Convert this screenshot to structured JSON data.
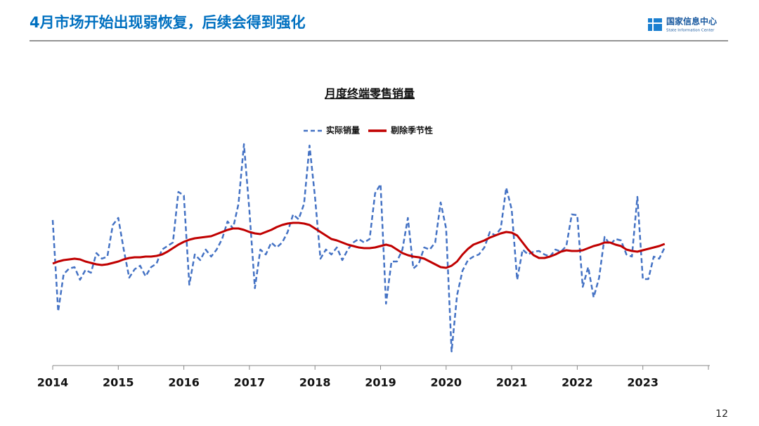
{
  "header": {
    "title": "4月市场开始出现弱恢复，后续会得到强化",
    "logo_cn": "国家信息中心",
    "logo_en": "State Information Center"
  },
  "page_number": "12",
  "chart_data": {
    "type": "line",
    "title": "月度终端零售销量",
    "categories": [
      "2014",
      null,
      null,
      null,
      null,
      null,
      null,
      null,
      null,
      null,
      null,
      null,
      "2015",
      null,
      null,
      null,
      null,
      null,
      null,
      null,
      null,
      null,
      null,
      null,
      "2016",
      null,
      null,
      null,
      null,
      null,
      null,
      null,
      null,
      null,
      null,
      null,
      "2017",
      null,
      null,
      null,
      null,
      null,
      null,
      null,
      null,
      null,
      null,
      null,
      "2018",
      null,
      null,
      null,
      null,
      null,
      null,
      null,
      null,
      null,
      null,
      null,
      "2019",
      null,
      null,
      null,
      null,
      null,
      null,
      null,
      null,
      null,
      null,
      null,
      "2020",
      null,
      null,
      null,
      null,
      null,
      null,
      null,
      null,
      null,
      null,
      null,
      "2021",
      null,
      null,
      null,
      null,
      null,
      null,
      null,
      null,
      null,
      null,
      null,
      "2022",
      null,
      null,
      null,
      null,
      null,
      null,
      null,
      null,
      null,
      null,
      null,
      "2023",
      null,
      null,
      null,
      null,
      null,
      null,
      null,
      null,
      null,
      null,
      null,
      null
    ],
    "ylim": [
      0,
      330
    ],
    "series": [
      {
        "name": "实际销量",
        "color": "#4472c4",
        "dashed": true,
        "values": [
          207,
          77,
          130,
          138,
          140,
          122,
          136,
          132,
          160,
          152,
          155,
          200,
          210,
          165,
          125,
          137,
          142,
          127,
          140,
          145,
          165,
          170,
          175,
          247,
          242,
          115,
          158,
          150,
          165,
          155,
          165,
          180,
          205,
          195,
          230,
          315,
          220,
          110,
          165,
          158,
          175,
          168,
          175,
          190,
          215,
          208,
          230,
          313,
          240,
          152,
          165,
          158,
          168,
          150,
          165,
          175,
          180,
          175,
          180,
          245,
          258,
          88,
          148,
          148,
          165,
          210,
          138,
          145,
          168,
          165,
          175,
          232,
          195,
          20,
          100,
          135,
          150,
          155,
          158,
          168,
          190,
          185,
          195,
          253,
          222,
          122,
          165,
          158,
          162,
          163,
          158,
          155,
          165,
          162,
          170,
          215,
          214,
          112,
          140,
          97,
          125,
          183,
          172,
          180,
          178,
          158,
          155,
          240,
          123,
          123,
          155,
          152,
          168,
          null,
          null,
          null,
          null,
          null,
          null,
          null,
          null
        ]
      },
      {
        "name": "剔除季节性",
        "color": "#c00000",
        "dashed": false,
        "values": [
          145,
          148,
          150,
          151,
          152,
          151,
          148,
          146,
          144,
          143,
          144,
          146,
          148,
          151,
          153,
          154,
          154,
          155,
          155,
          156,
          158,
          162,
          167,
          172,
          176,
          179,
          181,
          182,
          183,
          184,
          187,
          190,
          193,
          195,
          195,
          193,
          190,
          188,
          187,
          190,
          193,
          197,
          200,
          202,
          203,
          203,
          202,
          200,
          195,
          190,
          185,
          180,
          178,
          175,
          172,
          170,
          168,
          167,
          167,
          168,
          170,
          172,
          170,
          165,
          160,
          157,
          155,
          154,
          152,
          148,
          144,
          140,
          139,
          142,
          148,
          158,
          166,
          172,
          175,
          178,
          182,
          185,
          188,
          190,
          189,
          185,
          175,
          165,
          157,
          153,
          153,
          155,
          158,
          162,
          164,
          163,
          163,
          164,
          167,
          170,
          172,
          175,
          175,
          172,
          170,
          165,
          163,
          162,
          164,
          166,
          168,
          170,
          173,
          null,
          null,
          null,
          null,
          null,
          null,
          null,
          null
        ]
      }
    ]
  }
}
